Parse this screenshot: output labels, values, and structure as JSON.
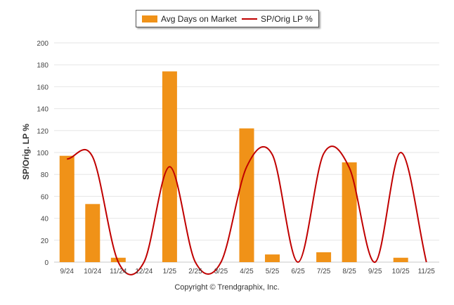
{
  "legend": {
    "bar_label": "Avg Days on Market",
    "line_label": "SP/Orig LP %"
  },
  "colors": {
    "bar": "#F09218",
    "line": "#C00000",
    "grid": "#e6e6e6",
    "axis_text": "#444444"
  },
  "footer": {
    "copyright": "Copyright © Trendgraphix, Inc."
  },
  "chart_data": {
    "type": "bar",
    "categories": [
      "9/24",
      "10/24",
      "11/24",
      "12/24",
      "1/25",
      "2/25",
      "3/25",
      "4/25",
      "5/25",
      "6/25",
      "7/25",
      "8/25",
      "9/25",
      "10/25",
      "11/25"
    ],
    "ylabel": "SP/Orig. LP %",
    "xlabel": "",
    "ylim": [
      0,
      200
    ],
    "yticks": [
      0,
      20,
      40,
      60,
      80,
      100,
      120,
      140,
      160,
      180,
      200
    ],
    "grid": true,
    "legend_position": "top-center",
    "series": [
      {
        "name": "Avg Days on Market",
        "type": "bar",
        "values": [
          97,
          53,
          4,
          0,
          174,
          0,
          0,
          122,
          7,
          0,
          9,
          91,
          0,
          4,
          0
        ]
      },
      {
        "name": "SP/Orig LP %",
        "type": "line",
        "values": [
          94,
          96,
          0,
          0,
          87,
          0,
          0,
          87,
          98,
          0,
          99,
          86,
          0,
          100,
          0
        ]
      }
    ]
  }
}
